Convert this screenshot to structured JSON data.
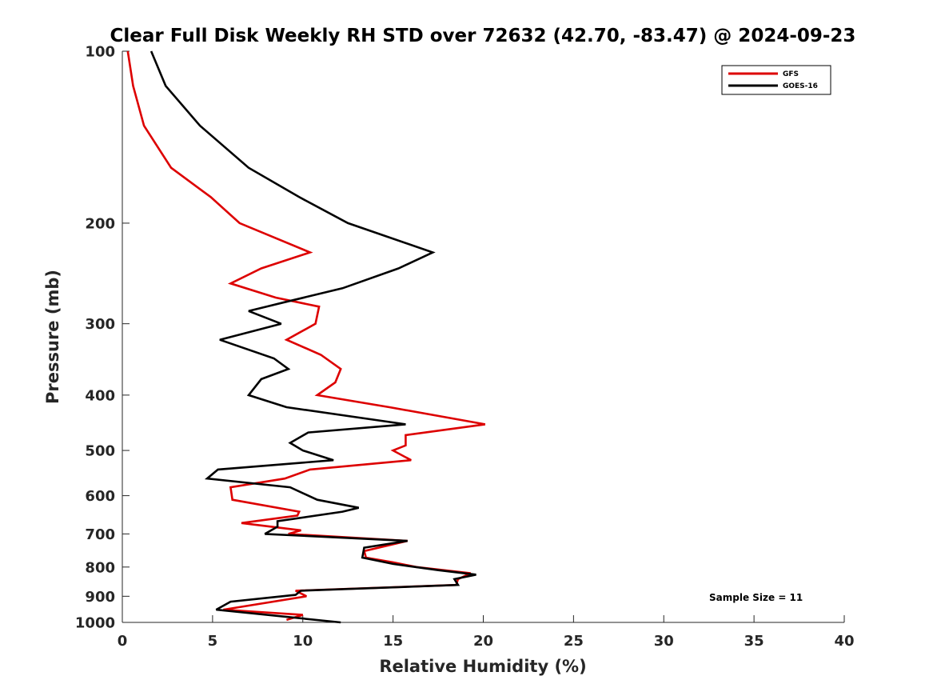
{
  "chart_data": {
    "type": "line",
    "title": "Clear Full Disk Weekly RH STD over 72632 (42.70, -83.47) @ 2024-09-23",
    "xlabel": "Relative Humidity (%)",
    "ylabel": "Pressure (mb)",
    "xlim": [
      0,
      40
    ],
    "ylim": [
      100,
      1000
    ],
    "y_scale": "log",
    "y_reversed": true,
    "xticks": [
      0,
      5,
      10,
      15,
      20,
      25,
      30,
      35,
      40
    ],
    "xtick_labels": [
      "0",
      "5",
      "10",
      "15",
      "20",
      "25",
      "30",
      "35",
      "40"
    ],
    "yticks": [
      100,
      200,
      300,
      400,
      500,
      600,
      700,
      800,
      900,
      1000
    ],
    "ytick_labels": [
      "100",
      "200",
      "300",
      "400",
      "500",
      "600",
      "700",
      "800",
      "900",
      "1000"
    ],
    "grid": false,
    "legend_position": "top-right",
    "annotation": "Sample Size = 11",
    "series": [
      {
        "name": "GFS",
        "color": "#dd0000",
        "points": [
          [
            0.3,
            100
          ],
          [
            0.6,
            115
          ],
          [
            1.2,
            135
          ],
          [
            2.7,
            160
          ],
          [
            4.9,
            180
          ],
          [
            6.5,
            200
          ],
          [
            10.4,
            225
          ],
          [
            7.7,
            240
          ],
          [
            6.0,
            255
          ],
          [
            8.5,
            270
          ],
          [
            10.9,
            280
          ],
          [
            10.7,
            300
          ],
          [
            9.1,
            320
          ],
          [
            11.0,
            340
          ],
          [
            12.1,
            360
          ],
          [
            11.8,
            380
          ],
          [
            10.8,
            400
          ],
          [
            14.8,
            420
          ],
          [
            20.1,
            450
          ],
          [
            15.7,
            470
          ],
          [
            15.7,
            490
          ],
          [
            15.0,
            500
          ],
          [
            16.0,
            520
          ],
          [
            10.4,
            540
          ],
          [
            9.0,
            560
          ],
          [
            6.0,
            580
          ],
          [
            6.1,
            610
          ],
          [
            9.8,
            640
          ],
          [
            9.7,
            650
          ],
          [
            6.6,
            670
          ],
          [
            9.9,
            690
          ],
          [
            9.2,
            700
          ],
          [
            15.8,
            720
          ],
          [
            13.4,
            750
          ],
          [
            13.5,
            770
          ],
          [
            15.0,
            785
          ],
          [
            16.3,
            800
          ],
          [
            19.3,
            820
          ],
          [
            18.6,
            840
          ],
          [
            18.5,
            860
          ],
          [
            9.6,
            880
          ],
          [
            10.2,
            900
          ],
          [
            5.6,
            950
          ],
          [
            10.0,
            970
          ],
          [
            9.1,
            990
          ]
        ]
      },
      {
        "name": "GOES-16",
        "color": "#000000",
        "points": [
          [
            1.6,
            100
          ],
          [
            2.4,
            115
          ],
          [
            4.3,
            135
          ],
          [
            7.0,
            160
          ],
          [
            9.8,
            180
          ],
          [
            12.5,
            200
          ],
          [
            17.2,
            225
          ],
          [
            15.3,
            240
          ],
          [
            12.2,
            260
          ],
          [
            9.0,
            275
          ],
          [
            7.0,
            285
          ],
          [
            8.8,
            300
          ],
          [
            5.4,
            320
          ],
          [
            8.4,
            345
          ],
          [
            9.2,
            360
          ],
          [
            7.7,
            375
          ],
          [
            7.0,
            400
          ],
          [
            9.1,
            420
          ],
          [
            15.7,
            450
          ],
          [
            10.3,
            465
          ],
          [
            9.3,
            485
          ],
          [
            10.0,
            500
          ],
          [
            11.7,
            520
          ],
          [
            5.3,
            540
          ],
          [
            4.7,
            560
          ],
          [
            9.3,
            580
          ],
          [
            10.8,
            610
          ],
          [
            13.1,
            630
          ],
          [
            12.2,
            640
          ],
          [
            8.6,
            665
          ],
          [
            8.6,
            680
          ],
          [
            7.9,
            700
          ],
          [
            15.8,
            720
          ],
          [
            13.4,
            740
          ],
          [
            13.3,
            770
          ],
          [
            15.0,
            790
          ],
          [
            17.5,
            810
          ],
          [
            19.6,
            825
          ],
          [
            18.4,
            840
          ],
          [
            18.6,
            860
          ],
          [
            9.9,
            880
          ],
          [
            9.6,
            895
          ],
          [
            6.0,
            920
          ],
          [
            5.2,
            950
          ],
          [
            12.1,
            1000
          ]
        ]
      }
    ]
  }
}
